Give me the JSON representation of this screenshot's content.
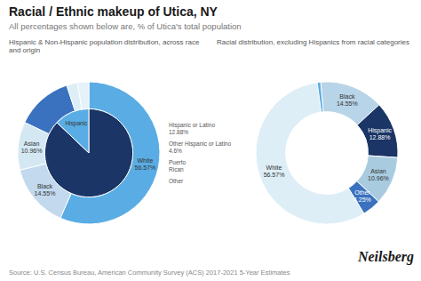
{
  "title": "Racial / Ethnic makeup of Utica, NY",
  "subtitle": "All percentages shown below are, % of Utica's total population",
  "annotations": [
    "Source: U.S. Census Bureau, American Community Survey (ACS) 2017-2021 5-Year Estimates",
    "Neilsberg"
  ],
  "chart_data": [
    {
      "type": "pie",
      "title": "Hispanic & Non-Hispanic population distribution, across race and origin",
      "values": [
        56.57,
        14.55,
        10.96,
        12.88,
        2.5,
        2.54
      ],
      "colors": [
        "#5aade4",
        "#c2d9ee",
        "#d4e8f4",
        "#3a72c0",
        "#ddeef7",
        "#e5f2fa"
      ],
      "inner_values": [
        87.12,
        12.88
      ],
      "inner_colors": [
        "#1a3566",
        "#5aade4"
      ],
      "annotations": [
        "White\n56.57%",
        "Black\n14.55%",
        "Asian\n10.96%",
        "Hispanic or Latino\n12.88%",
        "Other Hispanic or Latino\n4.6%",
        "Puerto\nRican",
        "Other",
        "Hispanic"
      ]
    },
    {
      "type": "pie",
      "title": "Racial distribution, excluding Hispanics from racial categories",
      "values": [
        14.55,
        12.88,
        10.96,
        4.25,
        56.57,
        0.79
      ],
      "colors": [
        "#b8d4e8",
        "#1a3566",
        "#a8cbe0",
        "#3a72c0",
        "#ddeef7",
        "#5aade4"
      ],
      "annotations": [
        "Black\n14.55%",
        "Hispanic\n12.88%",
        "Asian\n10.96%",
        "Other\n4.25%",
        "White\n56.57%"
      ]
    }
  ]
}
